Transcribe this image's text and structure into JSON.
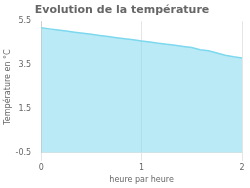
{
  "chart_data": {
    "type": "line",
    "title": "Evolution de la température",
    "x_label": "heure par heure",
    "y_label": "Température en °C",
    "x": [
      0.0,
      0.083,
      0.167,
      0.25,
      0.333,
      0.417,
      0.5,
      0.583,
      0.667,
      0.75,
      0.833,
      0.917,
      1.0,
      1.083,
      1.167,
      1.25,
      1.333,
      1.417,
      1.5,
      1.583,
      1.667,
      1.75,
      1.833,
      1.917,
      2.0
    ],
    "values": [
      5.2,
      5.15,
      5.1,
      5.05,
      5.0,
      4.95,
      4.9,
      4.85,
      4.8,
      4.75,
      4.7,
      4.65,
      4.6,
      4.55,
      4.5,
      4.45,
      4.4,
      4.35,
      4.3,
      4.2,
      4.15,
      4.05,
      3.95,
      3.88,
      3.82
    ],
    "color": "#7dd8ee",
    "xlim": [
      0,
      2
    ],
    "xticks": [
      0,
      1,
      2
    ],
    "ylim": [
      -0.5,
      5.5
    ],
    "yticks": [
      -0.5,
      1.5,
      3.5,
      5.5
    ],
    "grid": "x"
  }
}
